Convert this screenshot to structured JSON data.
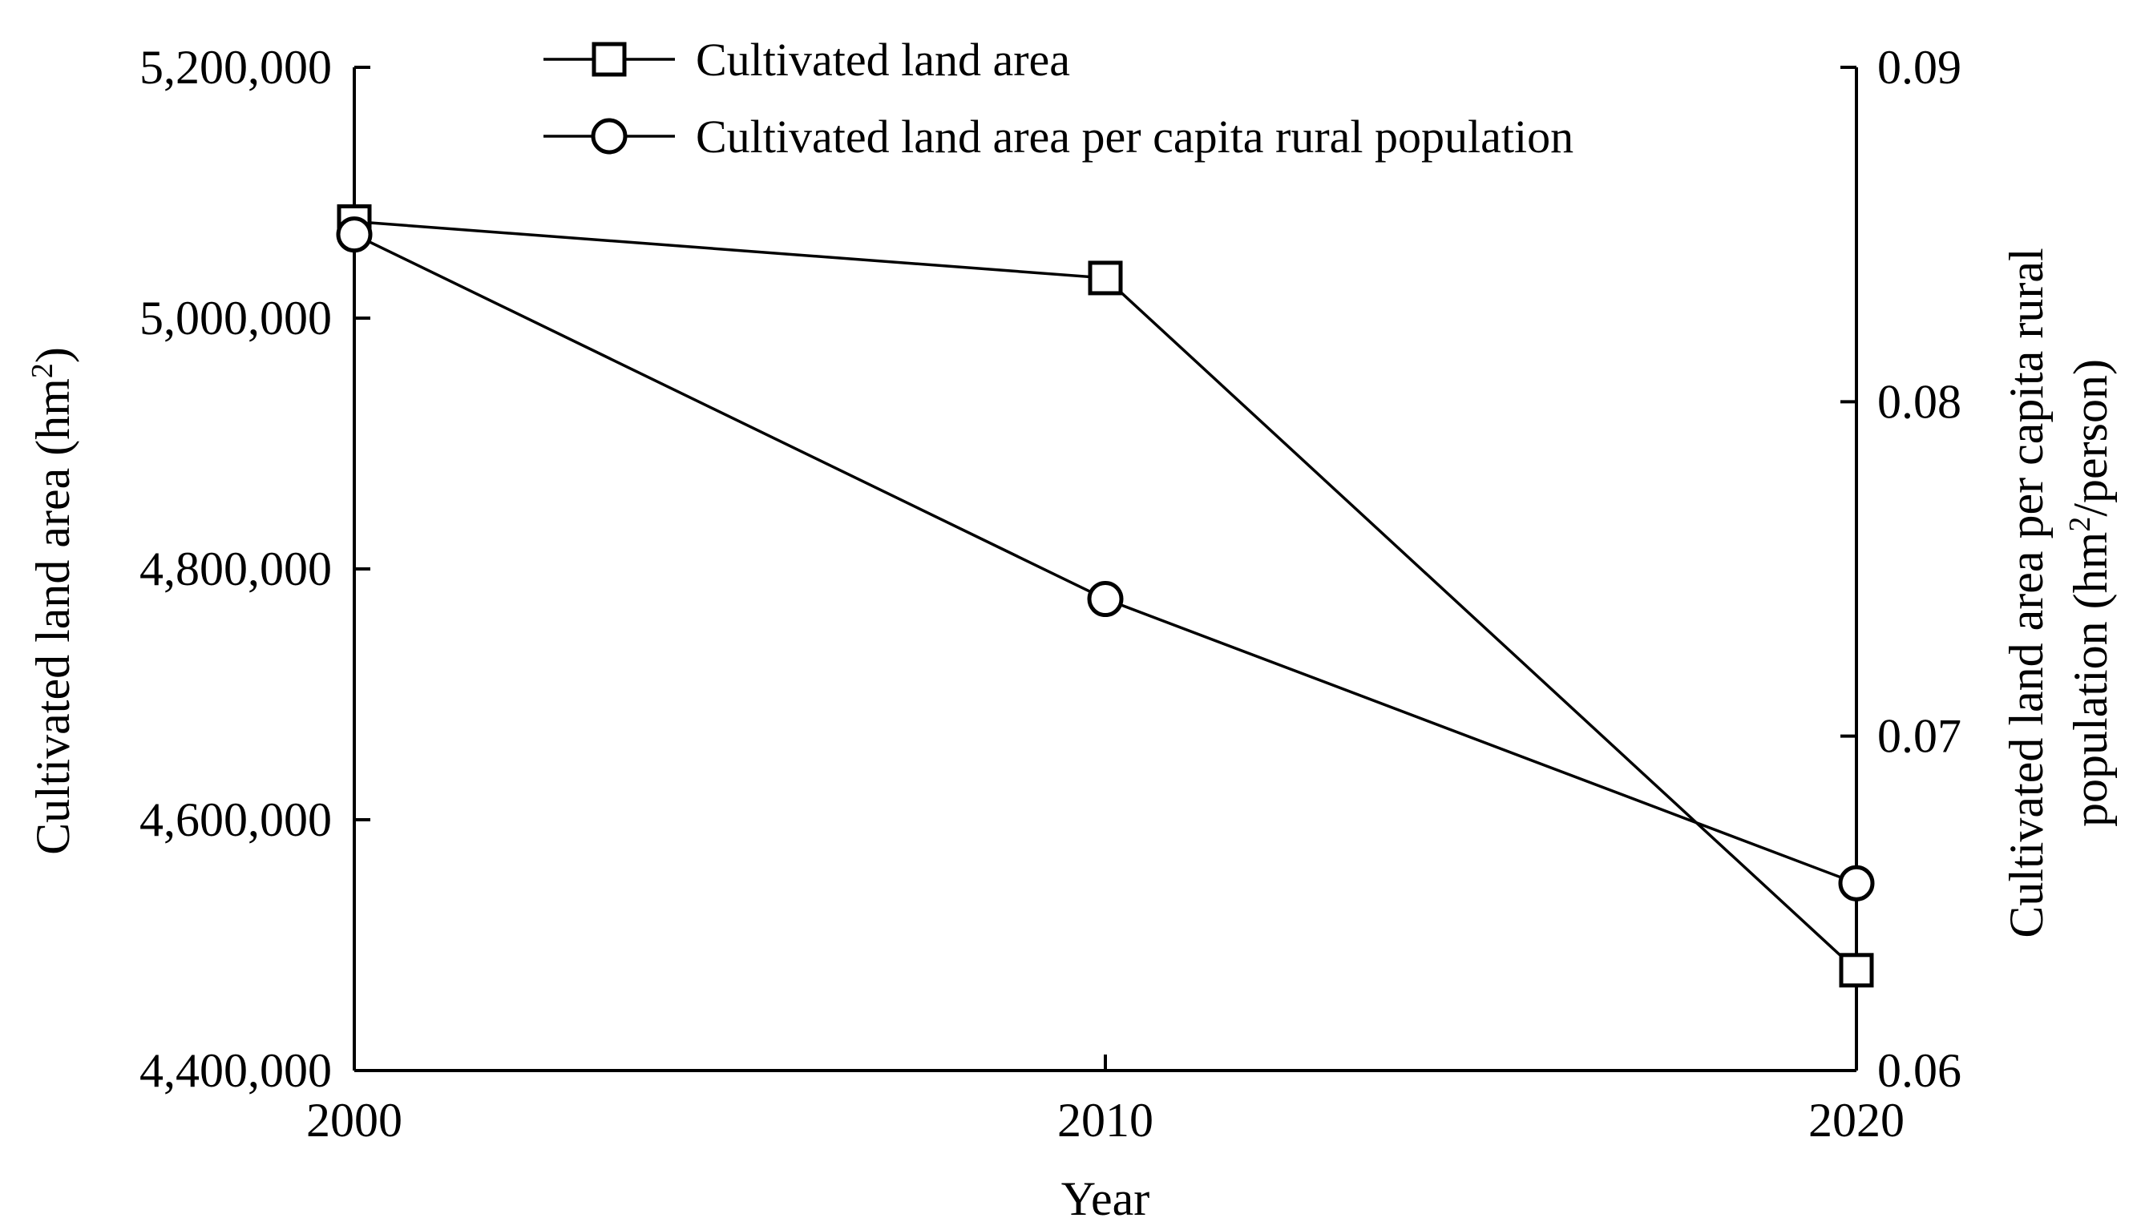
{
  "chart_data": {
    "type": "line",
    "xlabel": "Year",
    "x": [
      2000,
      2010,
      2020
    ],
    "x_tick_labels": [
      "2000",
      "2010",
      "2020"
    ],
    "y_left": {
      "label_main": "Cultivated land area (hm",
      "label_sup": "2",
      "label_tail": ")",
      "range": [
        4400000,
        5200000
      ],
      "ticks": [
        4400000,
        4600000,
        4800000,
        5000000,
        5200000
      ],
      "tick_labels": [
        "4,400,000",
        "4,600,000",
        "4,800,000",
        "5,000,000",
        "5,200,000"
      ]
    },
    "y_right": {
      "label_line1": "Cultivated land area per capita rural",
      "label_line2_main": "population (hm",
      "label_line2_sup": "2",
      "label_line2_tail": "/person)",
      "range": [
        0.06,
        0.09
      ],
      "ticks": [
        0.06,
        0.07,
        0.08,
        0.09
      ],
      "tick_labels": [
        "0.06",
        "0.07",
        "0.08",
        "0.09"
      ]
    },
    "series": [
      {
        "name": "Cultivated land area",
        "axis": "left",
        "marker": "square",
        "values": [
          5077000,
          5032000,
          4480000
        ]
      },
      {
        "name": "Cultivated land area per capita rural population",
        "axis": "right",
        "marker": "circle",
        "values": [
          0.085,
          0.0741,
          0.0656
        ]
      }
    ],
    "legend_position": "top-center",
    "grid": false,
    "line_color": "#000000",
    "marker_fill": "#ffffff"
  }
}
